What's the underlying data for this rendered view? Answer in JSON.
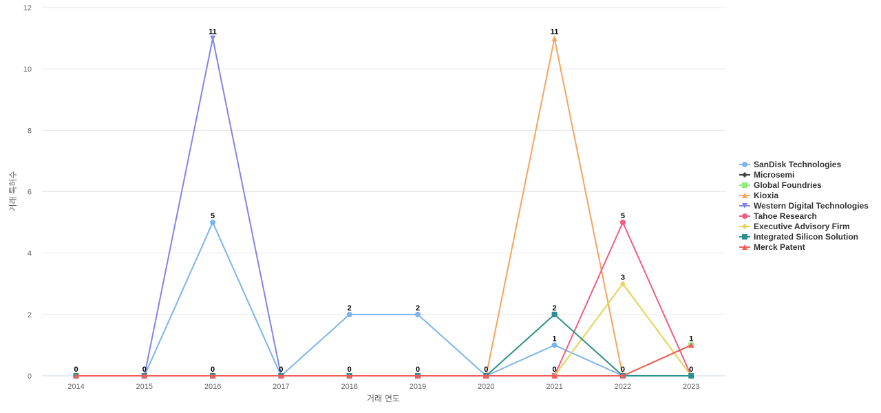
{
  "chart_data": {
    "type": "line",
    "xlabel": "거래 연도",
    "ylabel": "거래 특허수",
    "categories": [
      "2014",
      "2015",
      "2016",
      "2017",
      "2018",
      "2019",
      "2020",
      "2021",
      "2022",
      "2023"
    ],
    "ylim": [
      0,
      12
    ],
    "yticks": [
      0,
      2,
      4,
      6,
      8,
      10,
      12
    ],
    "grid": true,
    "legend_position": "right",
    "series": [
      {
        "name": "SanDisk Technologies",
        "color": "#7cb5ec",
        "marker": "circle",
        "values": [
          0,
          0,
          5,
          0,
          2,
          2,
          0,
          1,
          0,
          0
        ]
      },
      {
        "name": "Microsemi",
        "color": "#434348",
        "marker": "diamond",
        "values": [
          0,
          0,
          0,
          0,
          0,
          0,
          0,
          0,
          0,
          0
        ]
      },
      {
        "name": "Global Foundries",
        "color": "#90ed7d",
        "marker": "square",
        "values": [
          0,
          0,
          0,
          0,
          0,
          0,
          0,
          0,
          0,
          1
        ]
      },
      {
        "name": "Kioxia",
        "color": "#f7a35c",
        "marker": "triangle",
        "values": [
          0,
          0,
          0,
          0,
          0,
          0,
          0,
          11,
          0,
          1
        ]
      },
      {
        "name": "Western Digital Technologies",
        "color": "#8085e9",
        "marker": "triangle-down",
        "values": [
          0,
          0,
          11,
          0,
          0,
          0,
          0,
          0,
          0,
          0
        ]
      },
      {
        "name": "Tahoe Research",
        "color": "#f15c80",
        "marker": "circle",
        "values": [
          0,
          0,
          0,
          0,
          0,
          0,
          0,
          0,
          5,
          0
        ]
      },
      {
        "name": "Executive Advisory Firm",
        "color": "#e4d354",
        "marker": "diamond",
        "values": [
          0,
          0,
          0,
          0,
          0,
          0,
          0,
          0,
          3,
          0
        ]
      },
      {
        "name": "Integrated Silicon Solution",
        "color": "#2b908f",
        "marker": "square",
        "values": [
          0,
          0,
          0,
          0,
          0,
          0,
          0,
          2,
          0,
          0
        ]
      },
      {
        "name": "Merck Patent",
        "color": "#f45b5b",
        "marker": "triangle",
        "values": [
          0,
          0,
          0,
          0,
          0,
          0,
          0,
          0,
          0,
          1
        ]
      }
    ],
    "data_labels": [
      {
        "category": "2014",
        "value": 0
      },
      {
        "category": "2015",
        "value": 0
      },
      {
        "category": "2016",
        "value": 11
      },
      {
        "category": "2016",
        "value": 5
      },
      {
        "category": "2016",
        "value": 0
      },
      {
        "category": "2017",
        "value": 0
      },
      {
        "category": "2018",
        "value": 2
      },
      {
        "category": "2018",
        "value": 0
      },
      {
        "category": "2019",
        "value": 2
      },
      {
        "category": "2019",
        "value": 0
      },
      {
        "category": "2020",
        "value": 0
      },
      {
        "category": "2021",
        "value": 11
      },
      {
        "category": "2021",
        "value": 2
      },
      {
        "category": "2021",
        "value": 1
      },
      {
        "category": "2021",
        "value": 0
      },
      {
        "category": "2022",
        "value": 5
      },
      {
        "category": "2022",
        "value": 3
      },
      {
        "category": "2022",
        "value": 0
      },
      {
        "category": "2023",
        "value": 1
      },
      {
        "category": "2023",
        "value": 0
      }
    ]
  }
}
